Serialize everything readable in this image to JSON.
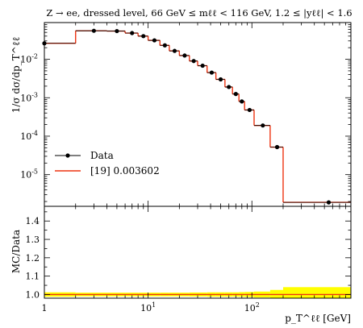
{
  "chart_data": {
    "type": "line",
    "title": "Z → ee, dressed level, 66 GeV ≤ mℓℓ < 116 GeV, 1.2 ≤ |yℓℓ| < 1.6",
    "xlabel": "p_T^ℓℓ [GeV]",
    "ylabel": "1/σ dσ/dp_T^ℓℓ",
    "ratio_ylabel": "MC/Data",
    "x_scale": "log",
    "y_scale": "log",
    "xlim": [
      1,
      900
    ],
    "ylim": [
      1.5e-06,
      0.09
    ],
    "ratio_ylim": [
      0.98,
      1.48
    ],
    "grid": false,
    "legend": {
      "position": "lower-left",
      "entries": [
        {
          "label": "Data",
          "style": "points-with-errors",
          "color": "#000000"
        },
        {
          "label": "[19] 0.003602",
          "style": "line",
          "color": "#ee3311"
        }
      ]
    },
    "x_ticks_main": [
      "1",
      "10^1",
      "10^2"
    ],
    "y_ticks_main": [
      "10^-2",
      "10^-3",
      "10^-4",
      "10^-5"
    ],
    "y_ticks_ratio": [
      "1.0",
      "1.1",
      "1.2",
      "1.3",
      "1.4"
    ],
    "bin_edges": [
      1,
      2,
      4,
      6,
      8,
      10,
      13,
      16,
      20,
      25,
      30,
      37,
      45,
      55,
      65,
      75,
      85,
      105,
      150,
      200,
      900
    ],
    "series": [
      {
        "name": "Data",
        "x": [
          1.0,
          3.0,
          5.0,
          7.0,
          9.0,
          11.5,
          14.5,
          18.0,
          22.5,
          27.5,
          33.5,
          41.0,
          50.0,
          60.0,
          70.0,
          80.0,
          95.0,
          127.5,
          175.0,
          550.0
        ],
        "values": [
          0.026,
          0.055,
          0.054,
          0.048,
          0.04,
          0.031,
          0.023,
          0.0165,
          0.0125,
          0.009,
          0.0068,
          0.0045,
          0.003,
          0.0019,
          0.00125,
          0.0008,
          0.00048,
          0.00019,
          5.2e-05,
          1.9e-06
        ]
      },
      {
        "name": "[19] 0.003602",
        "values": [
          0.026,
          0.055,
          0.054,
          0.048,
          0.04,
          0.031,
          0.023,
          0.0165,
          0.0125,
          0.009,
          0.0068,
          0.0045,
          0.003,
          0.0019,
          0.00125,
          0.0008,
          0.00048,
          0.00019,
          5.2e-05,
          1.9e-06
        ]
      }
    ],
    "ratio": {
      "values": [
        1.0,
        1.0,
        1.0,
        1.0,
        1.0,
        1.0,
        1.0,
        1.0,
        1.0,
        1.0,
        1.0,
        1.0,
        1.0,
        1.0,
        1.0,
        1.0,
        1.0,
        1.0,
        1.0,
        1.0
      ],
      "band_high": [
        1.012,
        1.01,
        1.01,
        1.01,
        1.01,
        1.01,
        1.01,
        1.01,
        1.01,
        1.011,
        1.011,
        1.012,
        1.012,
        1.012,
        1.012,
        1.013,
        1.014,
        1.016,
        1.025,
        1.04
      ],
      "band_low": [
        0.988,
        0.99,
        0.99,
        0.99,
        0.99,
        0.99,
        0.99,
        0.99,
        0.99,
        0.989,
        0.989,
        0.988,
        0.988,
        0.988,
        0.988,
        0.987,
        0.986,
        0.984,
        0.975,
        0.96
      ],
      "band_color": "#ffff00",
      "line_color": "#ee3311"
    }
  }
}
